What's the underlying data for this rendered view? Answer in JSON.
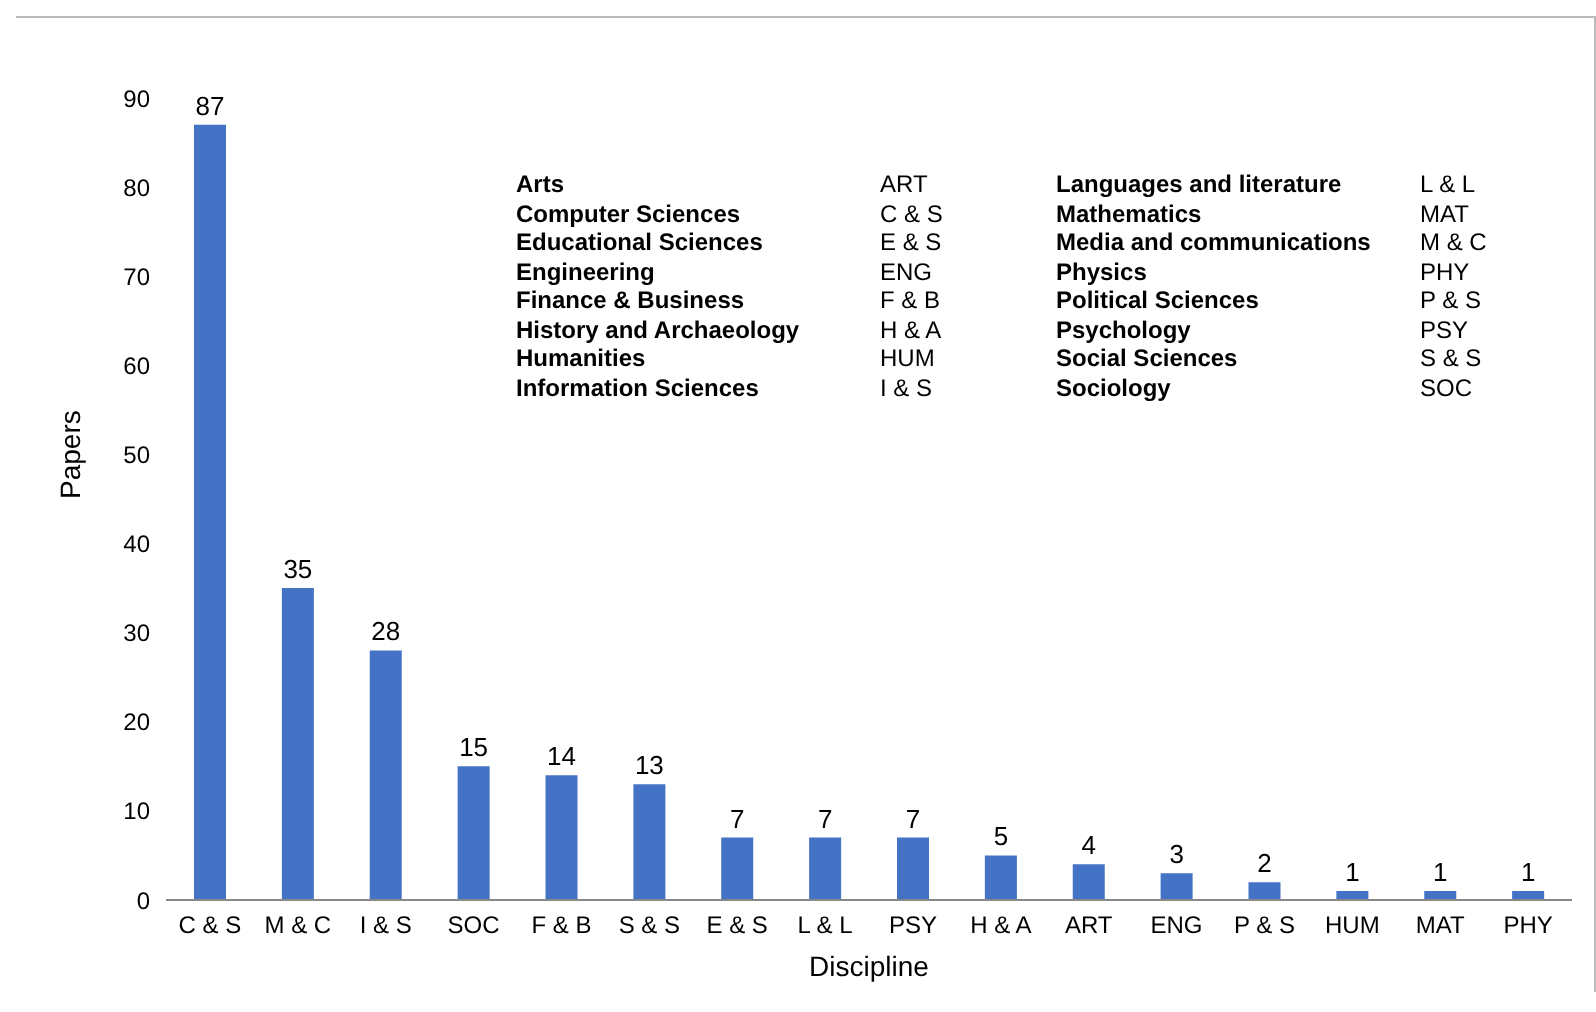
{
  "chart_data": {
    "type": "bar",
    "xlabel": "Discipline",
    "ylabel": "Papers",
    "categories": [
      "C & S",
      "M & C",
      "I & S",
      "SOC",
      "F & B",
      "S & S",
      "E & S",
      "L & L",
      "PSY",
      "H & A",
      "ART",
      "ENG",
      "P & S",
      "HUM",
      "MAT",
      "PHY"
    ],
    "values": [
      87,
      35,
      28,
      15,
      14,
      13,
      7,
      7,
      7,
      5,
      4,
      3,
      2,
      1,
      1,
      1
    ],
    "color": "#4472c4",
    "ylim": [
      0,
      90
    ],
    "yticks": [
      0,
      10,
      20,
      30,
      40,
      50,
      60,
      70,
      80,
      90
    ],
    "grid": false,
    "data_labels": true,
    "annotations": [
      "Arts",
      "ART",
      "Computer Sciences",
      "C & S",
      "Educational Sciences",
      "E & S",
      "Engineering",
      "ENG",
      "Finance & Business",
      "F & B",
      "History and Archaeology",
      "H & A",
      "Humanities",
      "HUM",
      "Information Sciences",
      "I & S",
      "Languages and literature",
      "L & L",
      "Mathematics",
      "MAT",
      "Media and communications",
      "M & C",
      "Physics",
      "PHY",
      "Political Sciences",
      "P & S",
      "Psychology",
      "PSY",
      "Social Sciences",
      "S & S",
      "Sociology",
      "SOC"
    ]
  }
}
